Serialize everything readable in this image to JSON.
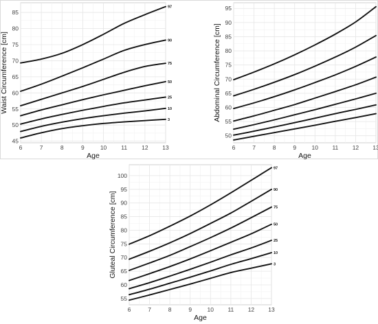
{
  "chart_data": [
    {
      "type": "line",
      "xlabel": "Age",
      "ylabel": "Waist Circumference [cm]",
      "xlim": [
        6,
        13
      ],
      "ylim": [
        44.5,
        88
      ],
      "xticks": [
        6,
        7,
        8,
        9,
        10,
        11,
        12,
        13
      ],
      "yticks": [
        45,
        50,
        55,
        60,
        65,
        70,
        75,
        80,
        85
      ],
      "grid": true,
      "x": [
        6,
        7,
        8,
        9,
        10,
        11,
        12,
        13
      ],
      "series": [
        {
          "name": "3",
          "values": [
            46.0,
            47.6,
            48.9,
            49.8,
            50.5,
            51.0,
            51.4,
            51.8
          ]
        },
        {
          "name": "10",
          "values": [
            48.0,
            49.6,
            50.9,
            52.0,
            52.9,
            53.7,
            54.4,
            55.2
          ]
        },
        {
          "name": "25",
          "values": [
            50.3,
            51.9,
            53.3,
            54.6,
            55.8,
            56.9,
            57.8,
            58.7
          ]
        },
        {
          "name": "50",
          "values": [
            52.9,
            54.7,
            56.3,
            57.9,
            59.4,
            60.8,
            62.2,
            63.5
          ]
        },
        {
          "name": "75",
          "values": [
            56.0,
            58.0,
            60.0,
            62.0,
            64.2,
            66.4,
            68.2,
            69.2
          ]
        },
        {
          "name": "90",
          "values": [
            60.5,
            62.7,
            65.2,
            67.8,
            70.5,
            73.2,
            75.0,
            76.4
          ]
        },
        {
          "name": "97",
          "values": [
            69.3,
            70.5,
            72.3,
            75.0,
            78.2,
            81.6,
            84.3,
            86.8
          ]
        }
      ]
    },
    {
      "type": "line",
      "xlabel": "Age",
      "ylabel": "Abdominal Circumference [cm]",
      "xlim": [
        6,
        13
      ],
      "ylim": [
        47.5,
        97
      ],
      "xticks": [
        6,
        7,
        8,
        9,
        10,
        11,
        12,
        13
      ],
      "yticks": [
        50,
        55,
        60,
        65,
        70,
        75,
        80,
        85,
        90,
        95
      ],
      "grid": true,
      "x": [
        6,
        7,
        8,
        9,
        10,
        11,
        12,
        13
      ],
      "series": [
        {
          "name": "3",
          "values": [
            48.5,
            49.8,
            51.1,
            52.4,
            53.7,
            55.1,
            56.4,
            57.8
          ]
        },
        {
          "name": "10",
          "values": [
            50.2,
            51.6,
            53.1,
            54.6,
            56.2,
            57.8,
            59.3,
            60.9
          ]
        },
        {
          "name": "25",
          "values": [
            52.3,
            53.9,
            55.6,
            57.4,
            59.2,
            61.1,
            63.0,
            65.0
          ]
        },
        {
          "name": "50",
          "values": [
            55.2,
            57.0,
            59.0,
            61.0,
            63.3,
            65.6,
            68.0,
            70.7
          ]
        },
        {
          "name": "75",
          "values": [
            59.6,
            61.6,
            63.8,
            66.2,
            68.8,
            71.5,
            74.5,
            77.8
          ]
        },
        {
          "name": "90",
          "values": [
            64.1,
            66.4,
            68.9,
            71.6,
            74.6,
            77.8,
            81.3,
            85.4
          ]
        },
        {
          "name": "97",
          "values": [
            69.8,
            72.5,
            75.4,
            78.6,
            82.1,
            85.9,
            90.2,
            95.6
          ]
        }
      ]
    },
    {
      "type": "line",
      "xlabel": "Age",
      "ylabel": "Gluteal Circumference [cm]",
      "xlim": [
        6,
        13
      ],
      "ylim": [
        52.7,
        104
      ],
      "xticks": [
        6,
        7,
        8,
        9,
        10,
        11,
        12,
        13
      ],
      "yticks": [
        55,
        60,
        65,
        70,
        75,
        80,
        85,
        90,
        95,
        100
      ],
      "grid": true,
      "x": [
        6,
        7,
        8,
        9,
        10,
        11,
        12,
        13
      ],
      "series": [
        {
          "name": "3",
          "values": [
            54.4,
            56.3,
            58.3,
            60.3,
            62.4,
            64.5,
            66.1,
            67.7
          ]
        },
        {
          "name": "10",
          "values": [
            56.4,
            58.4,
            60.6,
            62.8,
            65.1,
            67.5,
            69.6,
            71.8
          ]
        },
        {
          "name": "25",
          "values": [
            58.6,
            60.8,
            63.2,
            65.7,
            68.3,
            71.0,
            73.5,
            76.3
          ]
        },
        {
          "name": "50",
          "values": [
            61.6,
            64.1,
            66.7,
            69.5,
            72.5,
            75.6,
            78.7,
            82.2
          ]
        },
        {
          "name": "75",
          "values": [
            65.3,
            68.0,
            70.8,
            74.0,
            77.3,
            80.8,
            84.6,
            88.5
          ]
        },
        {
          "name": "90",
          "values": [
            69.4,
            72.3,
            75.4,
            78.8,
            82.5,
            86.3,
            90.6,
            95.0
          ]
        },
        {
          "name": "97",
          "values": [
            74.9,
            78.0,
            81.5,
            85.2,
            89.3,
            93.7,
            98.3,
            102.9
          ]
        }
      ]
    }
  ]
}
